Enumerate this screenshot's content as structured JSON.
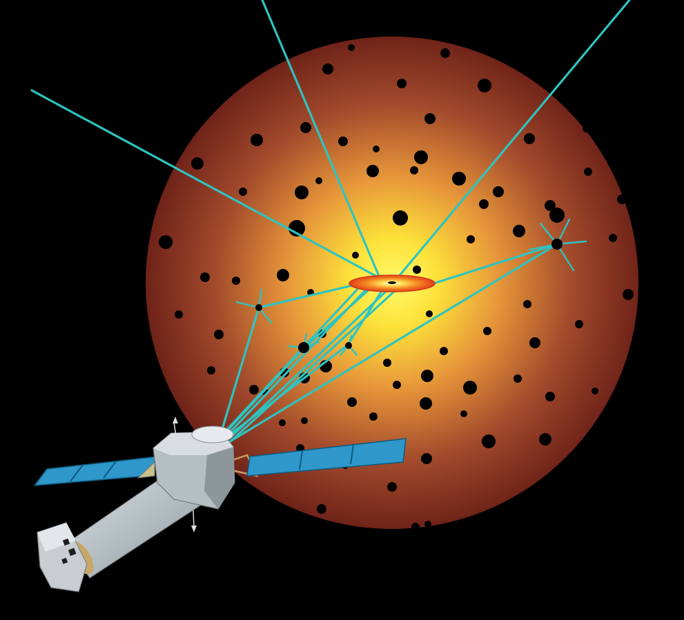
{
  "colors": {
    "background": "#000000",
    "cloud_center": "#fff23a",
    "cloud_mid": "#f2a33a",
    "cloud_edge": "#6e2218",
    "ray": "#2ec4c0",
    "disk_outer": "#f2551e",
    "disk_inner": "#ffe25a",
    "panel": "#2f97c9",
    "telescope_body": "#b9c2c6",
    "telescope_shadow": "#8d979c"
  },
  "icons": {
    "central_black_hole": "accretion-disk-icon",
    "telescope": "space-telescope-icon",
    "dots": "dark-spot-icon"
  }
}
